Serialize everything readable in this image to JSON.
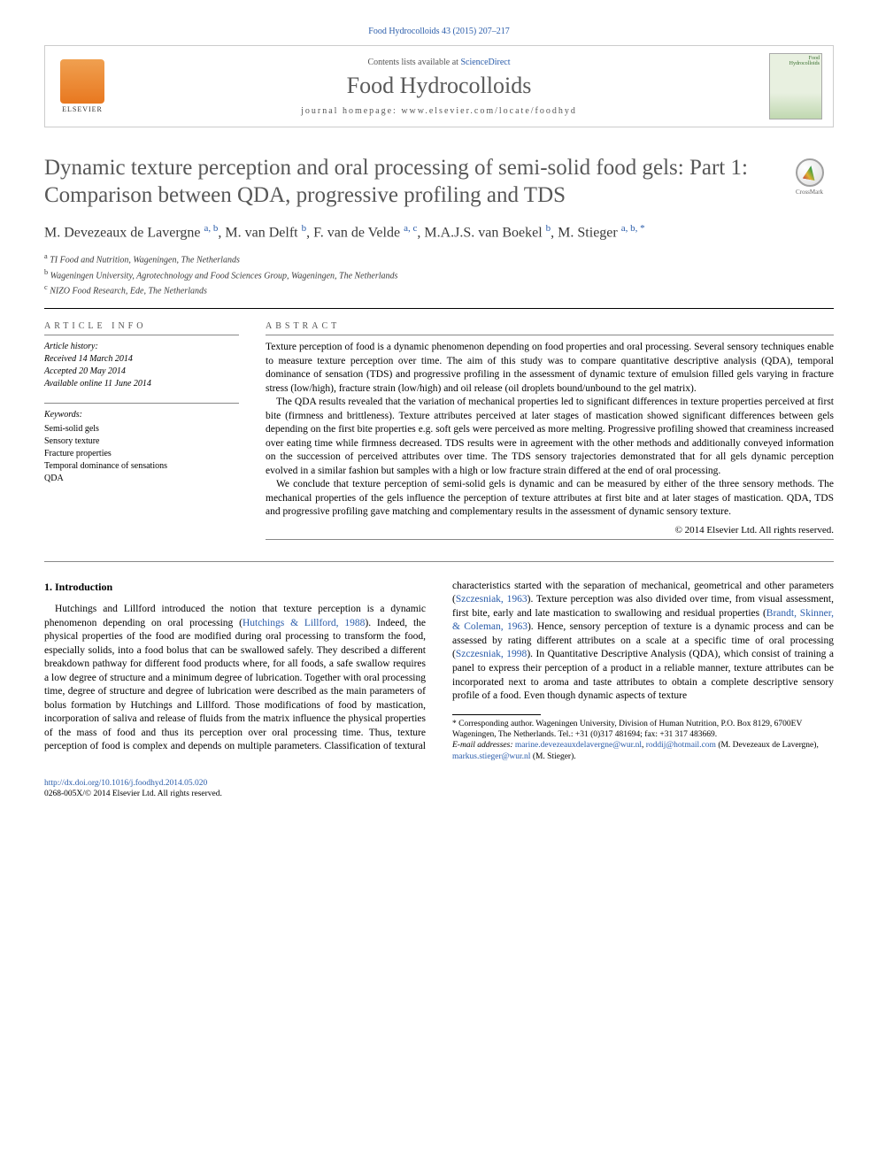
{
  "citation_line": "Food Hydrocolloids 43 (2015) 207–217",
  "masthead": {
    "contents_prefix": "Contents lists available at ",
    "contents_link": "ScienceDirect",
    "journal_name": "Food Hydrocolloids",
    "homepage_prefix": "journal homepage: ",
    "homepage_url": "www.elsevier.com/locate/foodhyd",
    "publisher": "ELSEVIER",
    "cover_title_1": "Food",
    "cover_title_2": "Hydrocolloids"
  },
  "crossmark_label": "CrossMark",
  "title": "Dynamic texture perception and oral processing of semi-solid food gels: Part 1: Comparison between QDA, progressive profiling and TDS",
  "authors_html": "M. Devezeaux de Lavergne <sup>a, b</sup>, M. van Delft <sup>b</sup>, F. van de Velde <sup>a, c</sup>, M.A.J.S. van Boekel <sup>b</sup>, M. Stieger <sup>a, b, *</sup>",
  "affiliations": {
    "a": "TI Food and Nutrition, Wageningen, The Netherlands",
    "b": "Wageningen University, Agrotechnology and Food Sciences Group, Wageningen, The Netherlands",
    "c": "NIZO Food Research, Ede, The Netherlands"
  },
  "article_info": {
    "heading": "ARTICLE INFO",
    "history_label": "Article history:",
    "received": "Received 14 March 2014",
    "accepted": "Accepted 20 May 2014",
    "online": "Available online 11 June 2014",
    "keywords_label": "Keywords:",
    "keywords": [
      "Semi-solid gels",
      "Sensory texture",
      "Fracture properties",
      "Temporal dominance of sensations",
      "QDA"
    ]
  },
  "abstract": {
    "heading": "ABSTRACT",
    "p1": "Texture perception of food is a dynamic phenomenon depending on food properties and oral processing. Several sensory techniques enable to measure texture perception over time. The aim of this study was to compare quantitative descriptive analysis (QDA), temporal dominance of sensation (TDS) and progressive profiling in the assessment of dynamic texture of emulsion filled gels varying in fracture stress (low/high), fracture strain (low/high) and oil release (oil droplets bound/unbound to the gel matrix).",
    "p2": "The QDA results revealed that the variation of mechanical properties led to significant differences in texture properties perceived at first bite (firmness and brittleness). Texture attributes perceived at later stages of mastication showed significant differences between gels depending on the first bite properties e.g. soft gels were perceived as more melting. Progressive profiling showed that creaminess increased over eating time while firmness decreased. TDS results were in agreement with the other methods and additionally conveyed information on the succession of perceived attributes over time. The TDS sensory trajectories demonstrated that for all gels dynamic perception evolved in a similar fashion but samples with a high or low fracture strain differed at the end of oral processing.",
    "p3": "We conclude that texture perception of semi-solid gels is dynamic and can be measured by either of the three sensory methods. The mechanical properties of the gels influence the perception of texture attributes at first bite and at later stages of mastication. QDA, TDS and progressive profiling gave matching and complementary results in the assessment of dynamic sensory texture.",
    "copyright": "© 2014 Elsevier Ltd. All rights reserved."
  },
  "body": {
    "section_heading": "1. Introduction",
    "p1a": "Hutchings and Lillford introduced the notion that texture perception is a dynamic phenomenon depending on oral processing (",
    "p1_ref1": "Hutchings & Lillford, 1988",
    "p1b": "). Indeed, the physical properties of the food are modified during oral processing to transform the food, especially solids, into a food bolus that can be swallowed safely. They described a different breakdown pathway for different food products where, for all foods, a safe swallow requires a low degree of structure and a minimum degree of lubrication. Together with oral processing time, degree of structure and degree of lubrication were described as the main parameters of bolus formation by Hutchings and Lillford. Those modifications of food by mastication, incorporation of saliva and release of fluids from the matrix influence the physical properties of the mass of food and thus its perception over oral processing time. Thus, texture perception of food is complex and depends on multiple parameters. Classification of textural characteristics started with the separation of mechanical, geometrical and other parameters (",
    "p1_ref2": "Szczesniak, 1963",
    "p1c": "). Texture perception was also divided over time, from visual assessment, first bite, early and late mastication to swallowing and residual properties (",
    "p1_ref3": "Brandt, Skinner, & Coleman, 1963",
    "p1d": "). Hence, sensory perception of texture is a dynamic process and can be assessed by rating different attributes on a scale at a specific time of oral processing (",
    "p1_ref4": "Szczesniak, 1998",
    "p1e": "). In Quantitative Descriptive Analysis (QDA), which consist of training a panel to express their perception of a product in a reliable manner, texture attributes can be incorporated next to aroma and taste attributes to obtain a complete descriptive sensory profile of a food. Even though dynamic aspects of texture"
  },
  "footnotes": {
    "corr": "* Corresponding author. Wageningen University, Division of Human Nutrition, P.O. Box 8129, 6700EV Wageningen, The Netherlands. Tel.: +31 (0)317 481694; fax: +31 317 483669.",
    "email_label": "E-mail addresses:",
    "email1": "marine.devezeauxdelavergne@wur.nl",
    "email1_alt": "roddij@hotmail.com",
    "email1_name": "(M. Devezeaux de Lavergne), ",
    "email2": "markus.stieger@wur.nl",
    "email2_name": " (M. Stieger)."
  },
  "bottom": {
    "doi": "http://dx.doi.org/10.1016/j.foodhyd.2014.05.020",
    "issn_copy": "0268-005X/© 2014 Elsevier Ltd. All rights reserved."
  },
  "colors": {
    "link": "#2a5caa",
    "text": "#000000",
    "heading_gray": "#585858"
  }
}
